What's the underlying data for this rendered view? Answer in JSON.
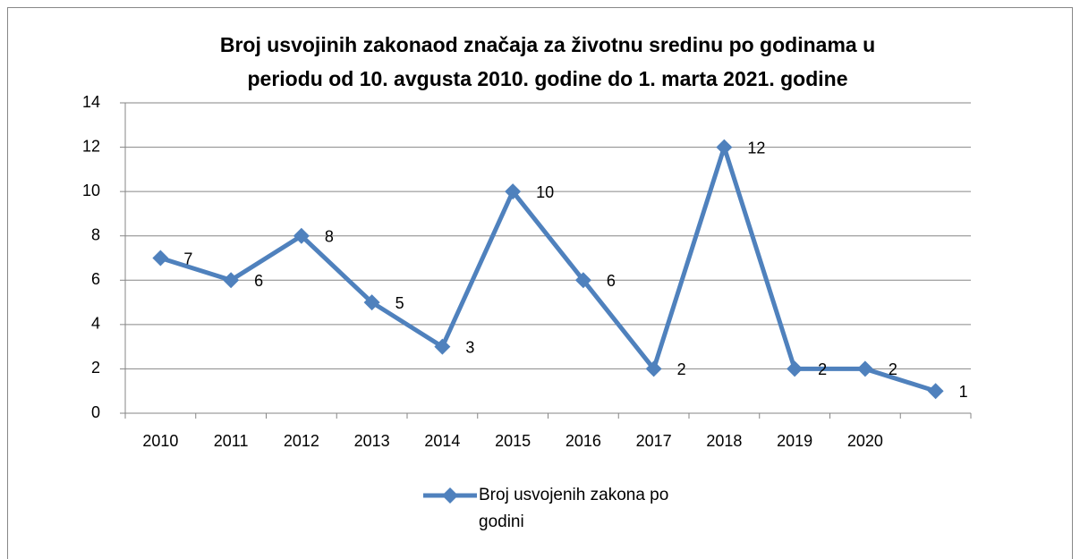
{
  "chart_data": {
    "type": "line",
    "title": [
      "Broj usvojinih zakonaod značaja za životnu sredinu po godinama u",
      "periodu od 10. avgusta 2010. godine do 1. marta 2021. godine"
    ],
    "categories": [
      "2010",
      "2011",
      "2012",
      "2013",
      "2014",
      "2015",
      "2016",
      "2017",
      "2018",
      "2019",
      "2020",
      null
    ],
    "series": [
      {
        "name": "Broj usvojenih zakona po godini",
        "color": "#4f81bd",
        "values": [
          7,
          6,
          8,
          5,
          3,
          10,
          6,
          2,
          12,
          2,
          2,
          1
        ]
      }
    ],
    "ylim": [
      0,
      14
    ],
    "yticks": [
      0,
      2,
      4,
      6,
      8,
      10,
      12,
      14
    ],
    "grid": true,
    "legend": "bottom"
  }
}
